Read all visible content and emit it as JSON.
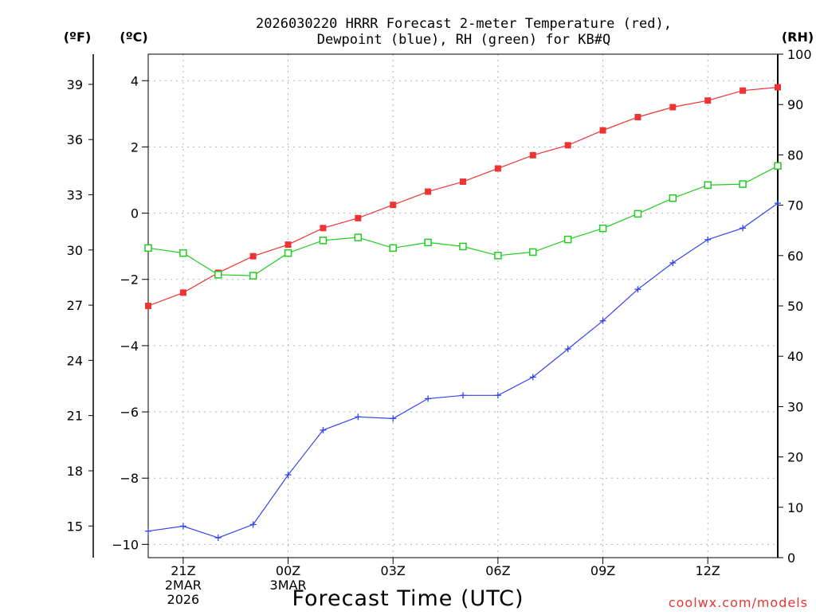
{
  "chart_data": {
    "type": "line",
    "title": "2026030220 HRRR Forecast 2-meter Temperature (red), Dewpoint (blue), RH (green) for KB#Q",
    "title_lines": [
      "2026030220 HRRR Forecast 2-meter Temperature (red),",
      "Dewpoint (blue), RH (green) for KB#Q"
    ],
    "xlabel": "Forecast Time (UTC)",
    "credit": "coolwx.com/models",
    "units": {
      "f": "(ºF)",
      "c": "(ºC)",
      "rh": "(RH)"
    },
    "x": [
      "20Z",
      "21Z",
      "22Z",
      "23Z",
      "00Z",
      "01Z",
      "02Z",
      "03Z",
      "04Z",
      "05Z",
      "06Z",
      "07Z",
      "08Z",
      "09Z",
      "10Z",
      "11Z",
      "12Z",
      "13Z",
      "14Z"
    ],
    "x_ticks": [
      {
        "index": 1,
        "lines": [
          "21Z",
          "2MAR",
          "2026"
        ]
      },
      {
        "index": 4,
        "lines": [
          "00Z",
          "3MAR"
        ]
      },
      {
        "index": 7,
        "lines": [
          "03Z"
        ]
      },
      {
        "index": 10,
        "lines": [
          "06Z"
        ]
      },
      {
        "index": 13,
        "lines": [
          "09Z"
        ]
      },
      {
        "index": 16,
        "lines": [
          "12Z"
        ]
      }
    ],
    "c_ticks": [
      "4",
      "2",
      "0",
      "−2",
      "−4",
      "−6",
      "−8",
      "−10"
    ],
    "c_tick_values": [
      4,
      2,
      0,
      -2,
      -4,
      -6,
      -8,
      -10
    ],
    "f_ticks": [
      "39",
      "36",
      "33",
      "30",
      "27",
      "24",
      "21",
      "18",
      "15"
    ],
    "f_tick_values": [
      39,
      36,
      33,
      30,
      27,
      24,
      21,
      18,
      15
    ],
    "rh_ticks": [
      "100",
      "90",
      "80",
      "70",
      "60",
      "50",
      "40",
      "30",
      "20",
      "10",
      "0"
    ],
    "rh_tick_values": [
      100,
      90,
      80,
      70,
      60,
      50,
      40,
      30,
      20,
      10,
      0
    ],
    "c_range": [
      -10.4,
      4.8
    ],
    "rh_range": [
      0,
      100
    ],
    "series": [
      {
        "name": "Temperature",
        "axis": "c",
        "color": "#ee3333",
        "marker": "filled-square",
        "values": [
          -2.8,
          -2.4,
          -1.8,
          -1.3,
          -0.95,
          -0.45,
          -0.15,
          0.25,
          0.65,
          0.95,
          1.35,
          1.75,
          2.05,
          2.5,
          2.9,
          3.2,
          3.4,
          3.7,
          3.8
        ]
      },
      {
        "name": "Dewpoint",
        "axis": "c",
        "color": "#3344ee",
        "marker": "plus",
        "values": [
          -9.6,
          -9.45,
          -9.8,
          -9.4,
          -7.9,
          -6.55,
          -6.15,
          -6.2,
          -5.6,
          -5.5,
          -5.5,
          -4.95,
          -4.1,
          -3.25,
          -2.3,
          -1.5,
          -0.8,
          -0.45,
          0.3
        ]
      },
      {
        "name": "RH",
        "axis": "rh",
        "color": "#22cc22",
        "marker": "open-square",
        "values": [
          61.5,
          60.5,
          56.2,
          56.0,
          60.5,
          63.0,
          63.6,
          61.5,
          62.6,
          61.8,
          60.0,
          60.7,
          63.2,
          65.4,
          68.3,
          71.4,
          74.0,
          74.2,
          77.8
        ]
      }
    ],
    "grid": true,
    "legend": "none"
  }
}
